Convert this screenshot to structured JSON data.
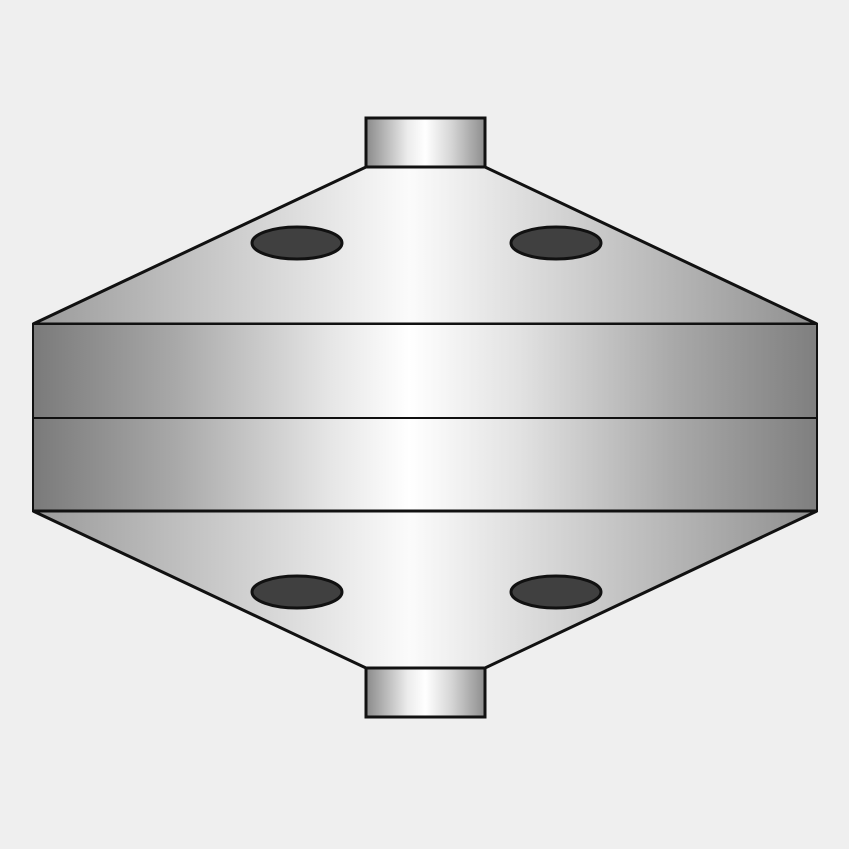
{
  "colors": {
    "background": "#efefef",
    "metal_dark": "#7d7d7d",
    "metal_mid": "#bdbdbd",
    "metal_light": "#ffffff",
    "hole_fill": "#404040",
    "outline": "#111111"
  },
  "object": {
    "kind": "metal-flange-fitting",
    "parts": [
      "top-nozzle",
      "upper-cone",
      "upper-band",
      "lower-band",
      "lower-cone",
      "bottom-nozzle"
    ],
    "bolt_holes": {
      "upper": 2,
      "lower": 2
    }
  }
}
